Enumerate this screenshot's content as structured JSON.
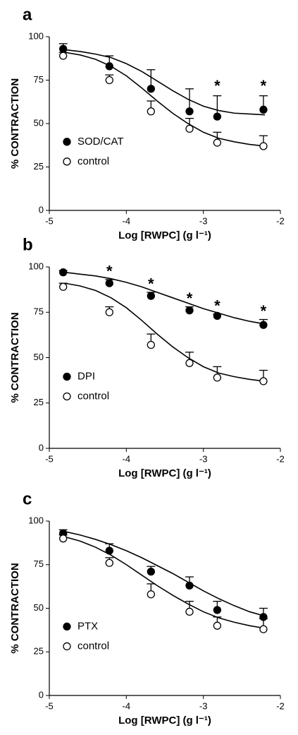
{
  "chart_data": [
    {
      "type": "scatter",
      "title": "a",
      "x_label": "Log [RWPC] (g l⁻¹)",
      "y_label": "% CONTRACTION",
      "xlim": [
        -5,
        -2
      ],
      "xticks": [
        -5,
        -4,
        -3,
        -2
      ],
      "ylim": [
        0,
        100
      ],
      "yticks": [
        0,
        25,
        50,
        75,
        100
      ],
      "legend": "lower left",
      "x": [
        -4.82,
        -4.22,
        -3.68,
        -3.18,
        -2.82,
        -2.22
      ],
      "fit_x": [
        -4.8,
        -4.6,
        -4.4,
        -4.2,
        -4.0,
        -3.8,
        -3.6,
        -3.4,
        -3.2,
        -3.0,
        -2.8,
        -2.6,
        -2.4,
        -2.2
      ],
      "series": [
        {
          "name": "SOD/CAT",
          "color": "#000000",
          "filled": true,
          "values": [
            93,
            83,
            70,
            57,
            54,
            58
          ],
          "errors": [
            3,
            6,
            11,
            13,
            12,
            8
          ],
          "fit": [
            92.5,
            91.5,
            90,
            88,
            84.5,
            80,
            74.5,
            69,
            64,
            60,
            57.5,
            56,
            55.5,
            55
          ]
        },
        {
          "name": "control",
          "color": "#000000",
          "filled": false,
          "values": [
            89,
            75,
            57,
            47,
            39,
            37
          ],
          "errors": [
            2,
            3,
            6,
            6,
            6,
            6
          ],
          "fit": [
            91,
            89.5,
            87,
            83,
            77.5,
            70.5,
            63,
            56,
            50,
            45,
            41.5,
            39.5,
            38,
            37
          ]
        }
      ],
      "annotations": [
        {
          "text": "*",
          "x": -2.82,
          "y": 71
        },
        {
          "text": "*",
          "x": -2.22,
          "y": 71
        }
      ]
    },
    {
      "type": "scatter",
      "title": "b",
      "x_label": "Log [RWPC] (g l⁻¹)",
      "y_label": "% CONTRACTION",
      "xlim": [
        -5,
        -2
      ],
      "xticks": [
        -5,
        -4,
        -3,
        -2
      ],
      "ylim": [
        0,
        100
      ],
      "yticks": [
        0,
        25,
        50,
        75,
        100
      ],
      "legend": "lower left",
      "x": [
        -4.82,
        -4.22,
        -3.68,
        -3.18,
        -2.82,
        -2.22
      ],
      "fit_x": [
        -4.8,
        -4.6,
        -4.4,
        -4.2,
        -4.0,
        -3.8,
        -3.6,
        -3.4,
        -3.2,
        -3.0,
        -2.8,
        -2.6,
        -2.4,
        -2.2
      ],
      "series": [
        {
          "name": "DPI",
          "color": "#000000",
          "filled": true,
          "values": [
            97,
            91,
            84,
            76,
            73,
            68
          ],
          "errors": [
            1,
            2,
            2,
            2,
            1,
            3
          ],
          "fit": [
            97,
            96,
            95,
            93.5,
            91.5,
            89,
            86,
            83,
            80,
            77,
            74.5,
            72,
            70,
            68.5
          ]
        },
        {
          "name": "control",
          "color": "#000000",
          "filled": false,
          "values": [
            89,
            75,
            57,
            47,
            39,
            37
          ],
          "errors": [
            2,
            3,
            6,
            6,
            6,
            6
          ],
          "fit": [
            91,
            89.5,
            87,
            83,
            77.5,
            70.5,
            63,
            56,
            50,
            45,
            41.5,
            39.5,
            38,
            37
          ]
        }
      ],
      "annotations": [
        {
          "text": "*",
          "x": -4.22,
          "y": 97
        },
        {
          "text": "*",
          "x": -3.68,
          "y": 90
        },
        {
          "text": "*",
          "x": -3.18,
          "y": 82
        },
        {
          "text": "*",
          "x": -2.82,
          "y": 78
        },
        {
          "text": "*",
          "x": -2.22,
          "y": 75
        }
      ]
    },
    {
      "type": "scatter",
      "title": "c",
      "x_label": "Log [RWPC] (g l⁻¹)",
      "y_label": "% CONTRACTION",
      "xlim": [
        -5,
        -2
      ],
      "xticks": [
        -5,
        -4,
        -3,
        -2
      ],
      "ylim": [
        0,
        100
      ],
      "yticks": [
        0,
        25,
        50,
        75,
        100
      ],
      "legend": "lower left",
      "x": [
        -4.82,
        -4.22,
        -3.68,
        -3.18,
        -2.82,
        -2.22
      ],
      "fit_x": [
        -4.8,
        -4.6,
        -4.4,
        -4.2,
        -4.0,
        -3.8,
        -3.6,
        -3.4,
        -3.2,
        -3.0,
        -2.8,
        -2.6,
        -2.4,
        -2.2
      ],
      "series": [
        {
          "name": "PTX",
          "color": "#000000",
          "filled": true,
          "values": [
            93,
            83,
            71,
            63,
            49,
            45
          ],
          "errors": [
            2,
            4,
            3,
            5,
            5,
            5
          ],
          "fit": [
            94,
            92,
            89.5,
            86.5,
            83,
            79,
            74.5,
            70,
            65,
            60,
            55.5,
            51.5,
            48,
            45.5
          ]
        },
        {
          "name": "control",
          "color": "#000000",
          "filled": false,
          "values": [
            90,
            76,
            58,
            48,
            40,
            38
          ],
          "errors": [
            2,
            3,
            6,
            6,
            5,
            6
          ],
          "fit": [
            91,
            88.5,
            85,
            80.5,
            75,
            69,
            63,
            57.5,
            52.5,
            48,
            44.5,
            42,
            40,
            38.5
          ]
        }
      ],
      "annotations": []
    }
  ]
}
